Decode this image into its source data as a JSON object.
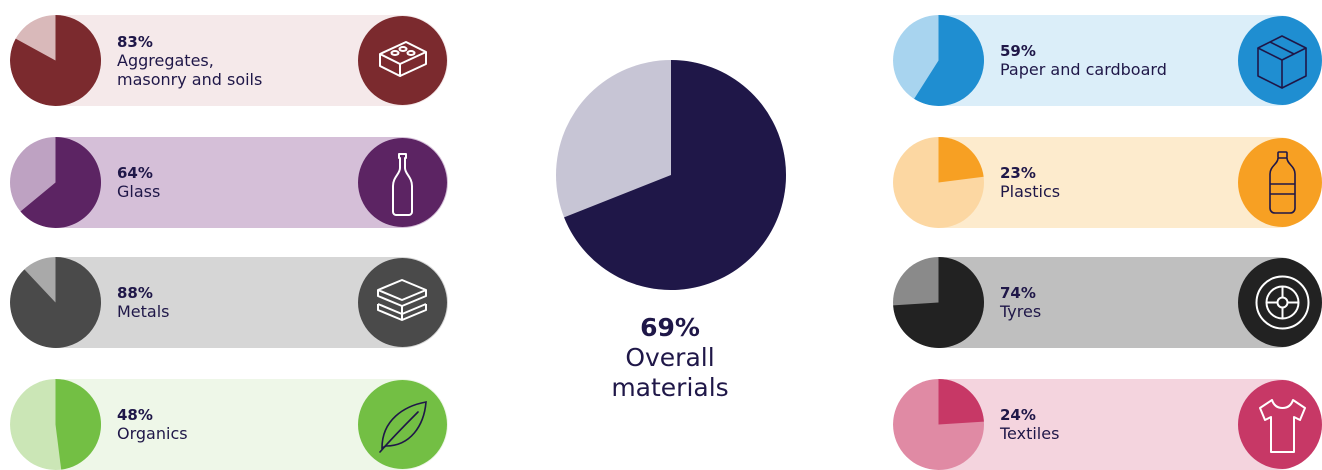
{
  "chart_data": {
    "type": "pie",
    "overall": {
      "value": 69,
      "label": "69%",
      "title": "Overall materials",
      "color": "#1f1748",
      "rest_color": "#c7c5d5"
    },
    "categories": [
      {
        "id": "aggregates",
        "value": 83,
        "label": "83%",
        "name": "Aggregates, masonry and soils",
        "name_lines": [
          "Aggregates,",
          "masonry and soils"
        ],
        "color": "#7b2a2e",
        "light": "#d9b9ba",
        "bg": "#f5e9ea",
        "icon": "brick-icon",
        "side": "left"
      },
      {
        "id": "glass",
        "value": 64,
        "label": "64%",
        "name": "Glass",
        "name_lines": [
          "Glass"
        ],
        "color": "#5c2463",
        "light": "#bea2c2",
        "bg": "#d5bfd8",
        "icon": "bottle-icon",
        "side": "left"
      },
      {
        "id": "metals",
        "value": 88,
        "label": "88%",
        "name": "Metals",
        "name_lines": [
          "Metals"
        ],
        "color": "#4a4a4a",
        "light": "#a9a9a9",
        "bg": "#d6d6d6",
        "icon": "metal-bars-icon",
        "side": "left"
      },
      {
        "id": "organics",
        "value": 48,
        "label": "48%",
        "name": "Organics",
        "name_lines": [
          "Organics"
        ],
        "color": "#73bf44",
        "light": "#cbe6b6",
        "bg": "#eef7e8",
        "icon": "leaf-icon",
        "side": "left"
      },
      {
        "id": "paper",
        "value": 59,
        "label": "59%",
        "name": "Paper and cardboard",
        "name_lines": [
          "Paper and cardboard"
        ],
        "color": "#1f8ed1",
        "light": "#a8d4ef",
        "bg": "#dbeef9",
        "icon": "box-icon",
        "side": "right"
      },
      {
        "id": "plastics",
        "value": 23,
        "label": "23%",
        "name": "Plastics",
        "name_lines": [
          "Plastics"
        ],
        "color": "#f7a023",
        "light": "#fcd7a2",
        "bg": "#fdebcd",
        "icon": "plastic-bottle-icon",
        "side": "right"
      },
      {
        "id": "tyres",
        "value": 74,
        "label": "74%",
        "name": "Tyres",
        "name_lines": [
          "Tyres"
        ],
        "color": "#222222",
        "light": "#8a8a8a",
        "bg": "#bfbfbf",
        "icon": "tyre-icon",
        "side": "right"
      },
      {
        "id": "textiles",
        "value": 24,
        "label": "24%",
        "name": "Textiles",
        "name_lines": [
          "Textiles"
        ],
        "color": "#c73866",
        "light": "#e08aa4",
        "bg": "#f4d4de",
        "icon": "tshirt-icon",
        "side": "right"
      }
    ]
  }
}
